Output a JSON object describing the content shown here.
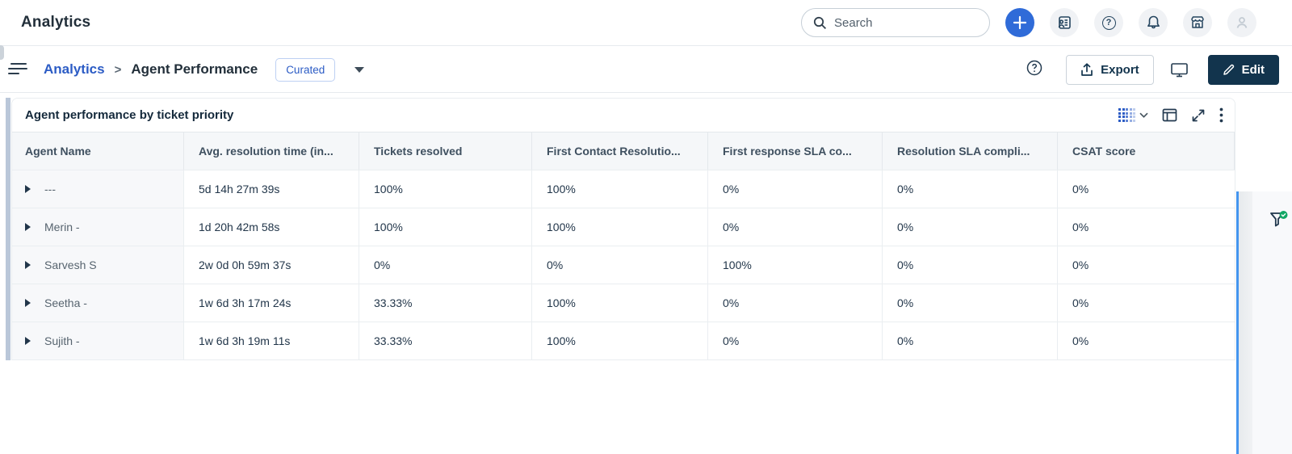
{
  "topbar": {
    "title": "Analytics",
    "search_placeholder": "Search"
  },
  "breadcrumb": {
    "root": "Analytics",
    "separator": ">",
    "current": "Agent Performance",
    "badge": "Curated"
  },
  "actions": {
    "export_label": "Export",
    "edit_label": "Edit",
    "help_glyph": "?"
  },
  "widget": {
    "title": "Agent performance by ticket priority"
  },
  "colors": {
    "accent_blue": "#2c5cc5",
    "plus_button_blue": "#2f6bd8",
    "edit_button_navy": "#12344d",
    "divider_blue": "#4495ef",
    "filter_badge_green": "#12a765"
  },
  "chart_data": {
    "type": "table",
    "title": "Agent performance by ticket priority",
    "columns": [
      "Agent Name",
      "Avg. resolution time (in...",
      "Tickets resolved",
      "First Contact Resolutio...",
      "First response SLA co...",
      "Resolution SLA compli...",
      "CSAT score"
    ],
    "rows": [
      {
        "name": "---",
        "cells": [
          "5d 14h 27m 39s",
          "100%",
          "100%",
          "0%",
          "0%",
          "0%"
        ]
      },
      {
        "name": "Merin -",
        "cells": [
          "1d 20h 42m 58s",
          "100%",
          "100%",
          "0%",
          "0%",
          "0%"
        ]
      },
      {
        "name": "Sarvesh S",
        "cells": [
          "2w 0d 0h 59m 37s",
          "0%",
          "0%",
          "100%",
          "0%",
          "0%"
        ]
      },
      {
        "name": "Seetha -",
        "cells": [
          "1w 6d 3h 17m 24s",
          "33.33%",
          "100%",
          "0%",
          "0%",
          "0%"
        ]
      },
      {
        "name": "Sujith -",
        "cells": [
          "1w 6d 3h 19m 11s",
          "33.33%",
          "100%",
          "0%",
          "0%",
          "0%"
        ]
      }
    ]
  }
}
